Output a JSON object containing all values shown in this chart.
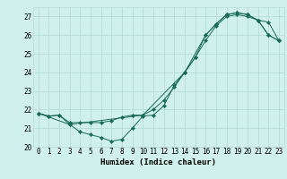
{
  "title": "",
  "xlabel": "Humidex (Indice chaleur)",
  "background_color": "#cff0ec",
  "grid_color": "#b8dbd7",
  "line_color": "#1a6b5a",
  "xlim": [
    -0.5,
    23.5
  ],
  "ylim": [
    20.0,
    27.5
  ],
  "yticks": [
    20,
    21,
    22,
    23,
    24,
    25,
    26,
    27
  ],
  "xticks": [
    0,
    1,
    2,
    3,
    4,
    5,
    6,
    7,
    8,
    9,
    10,
    11,
    12,
    13,
    14,
    15,
    16,
    17,
    18,
    19,
    20,
    21,
    22,
    23
  ],
  "line1_x": [
    0,
    1,
    2,
    3,
    4,
    5,
    6,
    7,
    8,
    9,
    10,
    11,
    12,
    13,
    14,
    15,
    16,
    17,
    18,
    19,
    20,
    21,
    22,
    23
  ],
  "line1_y": [
    21.8,
    21.65,
    21.7,
    21.2,
    20.8,
    20.65,
    20.5,
    20.3,
    20.4,
    21.0,
    21.65,
    21.7,
    22.2,
    23.3,
    24.0,
    24.8,
    26.0,
    26.6,
    27.1,
    27.2,
    27.1,
    26.8,
    26.0,
    25.7
  ],
  "line2_x": [
    0,
    1,
    2,
    3,
    4,
    5,
    6,
    7,
    8,
    9,
    10,
    11,
    12,
    13,
    14,
    15,
    16,
    17,
    18,
    19,
    20,
    21,
    22,
    23
  ],
  "line2_y": [
    21.8,
    21.65,
    21.7,
    21.3,
    21.3,
    21.3,
    21.3,
    21.4,
    21.6,
    21.7,
    21.7,
    22.0,
    22.5,
    23.2,
    24.0,
    24.8,
    25.7,
    26.5,
    27.0,
    27.1,
    27.0,
    26.8,
    26.7,
    25.7
  ],
  "line3_x": [
    0,
    3,
    10,
    14,
    16,
    17,
    18,
    19,
    20,
    21,
    22,
    23
  ],
  "line3_y": [
    21.8,
    21.2,
    21.7,
    24.0,
    26.0,
    26.6,
    27.1,
    27.2,
    27.1,
    26.8,
    26.0,
    25.7
  ],
  "tick_fontsize": 5.5,
  "xlabel_fontsize": 6.5
}
